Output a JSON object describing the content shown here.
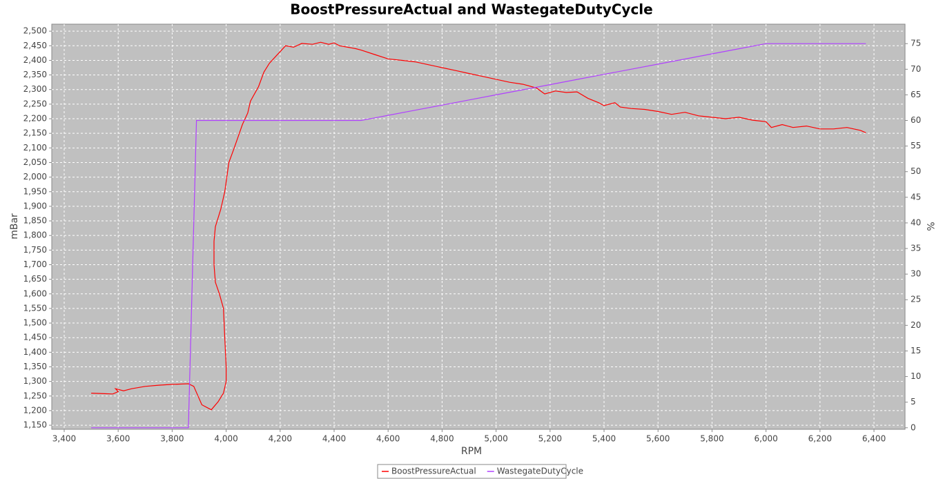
{
  "chart_data": {
    "type": "line",
    "title": "BoostPressureActual and WastegateDutyCycle",
    "x_label": "RPM",
    "y_label": "mBar",
    "y2_label": "%",
    "xlim": [
      3354,
      6515
    ],
    "ylim": [
      1136,
      2524
    ],
    "y2lim": [
      -0.3,
      78.8
    ],
    "grid": true,
    "legend": "bottom",
    "xticks": [
      {
        "value": 3400,
        "label": "3,400"
      },
      {
        "value": 3600,
        "label": "3,600"
      },
      {
        "value": 3800,
        "label": "3,800"
      },
      {
        "value": 4000,
        "label": "4,000"
      },
      {
        "value": 4200,
        "label": "4,200"
      },
      {
        "value": 4400,
        "label": "4,400"
      },
      {
        "value": 4600,
        "label": "4,600"
      },
      {
        "value": 4800,
        "label": "4,800"
      },
      {
        "value": 5000,
        "label": "5,000"
      },
      {
        "value": 5200,
        "label": "5,200"
      },
      {
        "value": 5400,
        "label": "5,400"
      },
      {
        "value": 5600,
        "label": "5,600"
      },
      {
        "value": 5800,
        "label": "5,800"
      },
      {
        "value": 6000,
        "label": "6,000"
      },
      {
        "value": 6200,
        "label": "6,200"
      },
      {
        "value": 6400,
        "label": "6,400"
      }
    ],
    "yticks": [
      {
        "value": 1150,
        "label": "1,150"
      },
      {
        "value": 1200,
        "label": "1,200"
      },
      {
        "value": 1250,
        "label": "1,250"
      },
      {
        "value": 1300,
        "label": "1,300"
      },
      {
        "value": 1350,
        "label": "1,350"
      },
      {
        "value": 1400,
        "label": "1,400"
      },
      {
        "value": 1450,
        "label": "1,450"
      },
      {
        "value": 1500,
        "label": "1,500"
      },
      {
        "value": 1550,
        "label": "1,550"
      },
      {
        "value": 1600,
        "label": "1,600"
      },
      {
        "value": 1650,
        "label": "1,650"
      },
      {
        "value": 1700,
        "label": "1,700"
      },
      {
        "value": 1750,
        "label": "1,750"
      },
      {
        "value": 1800,
        "label": "1,800"
      },
      {
        "value": 1850,
        "label": "1,850"
      },
      {
        "value": 1900,
        "label": "1,900"
      },
      {
        "value": 1950,
        "label": "1,950"
      },
      {
        "value": 2000,
        "label": "2,000"
      },
      {
        "value": 2050,
        "label": "2,050"
      },
      {
        "value": 2100,
        "label": "2,100"
      },
      {
        "value": 2150,
        "label": "2,150"
      },
      {
        "value": 2200,
        "label": "2,200"
      },
      {
        "value": 2250,
        "label": "2,250"
      },
      {
        "value": 2300,
        "label": "2,300"
      },
      {
        "value": 2350,
        "label": "2,350"
      },
      {
        "value": 2400,
        "label": "2,400"
      },
      {
        "value": 2450,
        "label": "2,450"
      },
      {
        "value": 2500,
        "label": "2,500"
      }
    ],
    "y2ticks": [
      0,
      5,
      10,
      15,
      20,
      25,
      30,
      35,
      40,
      45,
      50,
      55,
      60,
      65,
      70,
      75
    ],
    "series": [
      {
        "name": "BoostPressureActual",
        "color": "#ff0000",
        "x": [
          3500,
          3550,
          3580,
          3600,
          3590,
          3620,
          3650,
          3700,
          3750,
          3800,
          3860,
          3880,
          3910,
          3945,
          3970,
          3990,
          4000,
          4000,
          3995,
          3990,
          3975,
          3960,
          3955,
          3955,
          3960,
          3980,
          3995,
          4010,
          4030,
          4060,
          4080,
          4090,
          4120,
          4140,
          4160,
          4180,
          4200,
          4220,
          4250,
          4280,
          4320,
          4350,
          4380,
          4400,
          4420,
          4450,
          4480,
          4500,
          4550,
          4600,
          4650,
          4700,
          4750,
          4800,
          4850,
          4900,
          4950,
          5000,
          5050,
          5100,
          5150,
          5180,
          5220,
          5260,
          5300,
          5340,
          5380,
          5400,
          5440,
          5460,
          5500,
          5550,
          5600,
          5650,
          5700,
          5750,
          5800,
          5850,
          5900,
          5950,
          6000,
          6020,
          6060,
          6100,
          6150,
          6200,
          6250,
          6300,
          6350,
          6370
        ],
        "values": [
          1260,
          1258,
          1257,
          1265,
          1275,
          1268,
          1275,
          1283,
          1287,
          1290,
          1292,
          1283,
          1220,
          1203,
          1230,
          1260,
          1300,
          1350,
          1450,
          1550,
          1600,
          1640,
          1700,
          1780,
          1830,
          1890,
          1950,
          2050,
          2100,
          2180,
          2220,
          2260,
          2310,
          2360,
          2390,
          2410,
          2430,
          2450,
          2445,
          2458,
          2455,
          2462,
          2455,
          2460,
          2450,
          2445,
          2440,
          2435,
          2420,
          2405,
          2400,
          2395,
          2385,
          2375,
          2365,
          2355,
          2345,
          2335,
          2325,
          2318,
          2305,
          2285,
          2295,
          2290,
          2292,
          2270,
          2255,
          2245,
          2255,
          2240,
          2235,
          2232,
          2225,
          2215,
          2222,
          2210,
          2205,
          2200,
          2205,
          2195,
          2190,
          2170,
          2180,
          2170,
          2175,
          2165,
          2165,
          2170,
          2160,
          2152
        ]
      },
      {
        "name": "WastegateDutyCycle",
        "color": "#b040ff",
        "axis": "y2",
        "x": [
          3500,
          3860,
          3890,
          4500,
          4550,
          4600,
          4700,
          4800,
          4900,
          5000,
          5100,
          5200,
          5300,
          5400,
          5500,
          5600,
          5700,
          5800,
          5900,
          6000,
          6370
        ],
        "values": [
          0,
          0,
          60,
          60,
          60.5,
          61,
          62,
          63,
          64,
          65,
          66,
          67,
          68,
          69,
          70,
          71,
          72,
          73,
          74,
          75,
          75
        ]
      }
    ]
  }
}
